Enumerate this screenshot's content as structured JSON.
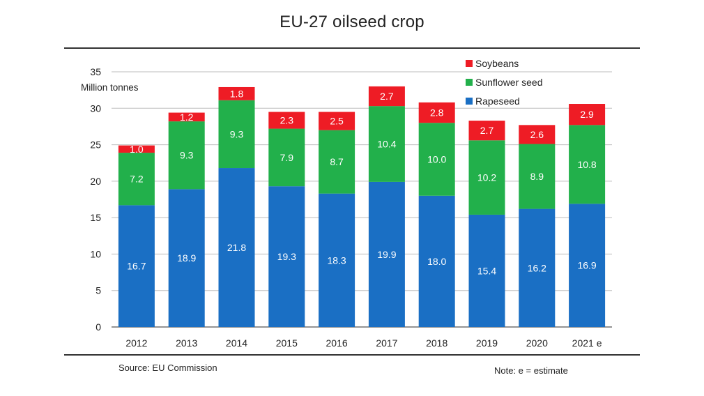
{
  "chart_data": {
    "type": "bar",
    "stacked": true,
    "title": "EU-27 oilseed crop",
    "ylabel": "Million tonnes",
    "xlabel": "",
    "ylim": [
      0,
      35
    ],
    "yticks": [
      0,
      5,
      10,
      15,
      20,
      25,
      30,
      35
    ],
    "grid": true,
    "legend_position": "top-right",
    "categories": [
      "2012",
      "2013",
      "2014",
      "2015",
      "2016",
      "2017",
      "2018",
      "2019",
      "2020",
      "2021 e"
    ],
    "series": [
      {
        "name": "Rapeseed",
        "color": "#1a6fc4",
        "values": [
          16.7,
          18.9,
          21.8,
          19.3,
          18.3,
          19.9,
          18.0,
          15.4,
          16.2,
          16.9
        ],
        "labels": [
          "16.7",
          "18.9",
          "21.8",
          "19.3",
          "18.3",
          "19.9",
          "18.0",
          "15.4",
          "16.2",
          "16.9"
        ]
      },
      {
        "name": "Sunflower seed",
        "color": "#22b04b",
        "values": [
          7.2,
          9.3,
          9.3,
          7.9,
          8.7,
          10.4,
          10.0,
          10.2,
          8.9,
          10.8
        ],
        "labels": [
          "7.2",
          "9.3",
          "9.3",
          "7.9",
          "8.7",
          "10.4",
          "10.0",
          "10.2",
          "8.9",
          "10.8"
        ]
      },
      {
        "name": "Soybeans",
        "color": "#ee1c25",
        "values": [
          1.0,
          1.2,
          1.8,
          2.3,
          2.5,
          2.7,
          2.8,
          2.7,
          2.6,
          2.9
        ],
        "labels": [
          "1.0",
          "1.2",
          "1.8",
          "2.3",
          "2.5",
          "2.7",
          "2.8",
          "2.7",
          "2.6",
          "2.9"
        ]
      }
    ],
    "legend_order": [
      "Soybeans",
      "Sunflower seed",
      "Rapeseed"
    ]
  },
  "footer": {
    "source": "Source: EU Commission",
    "note": "Note: e = estimate"
  }
}
